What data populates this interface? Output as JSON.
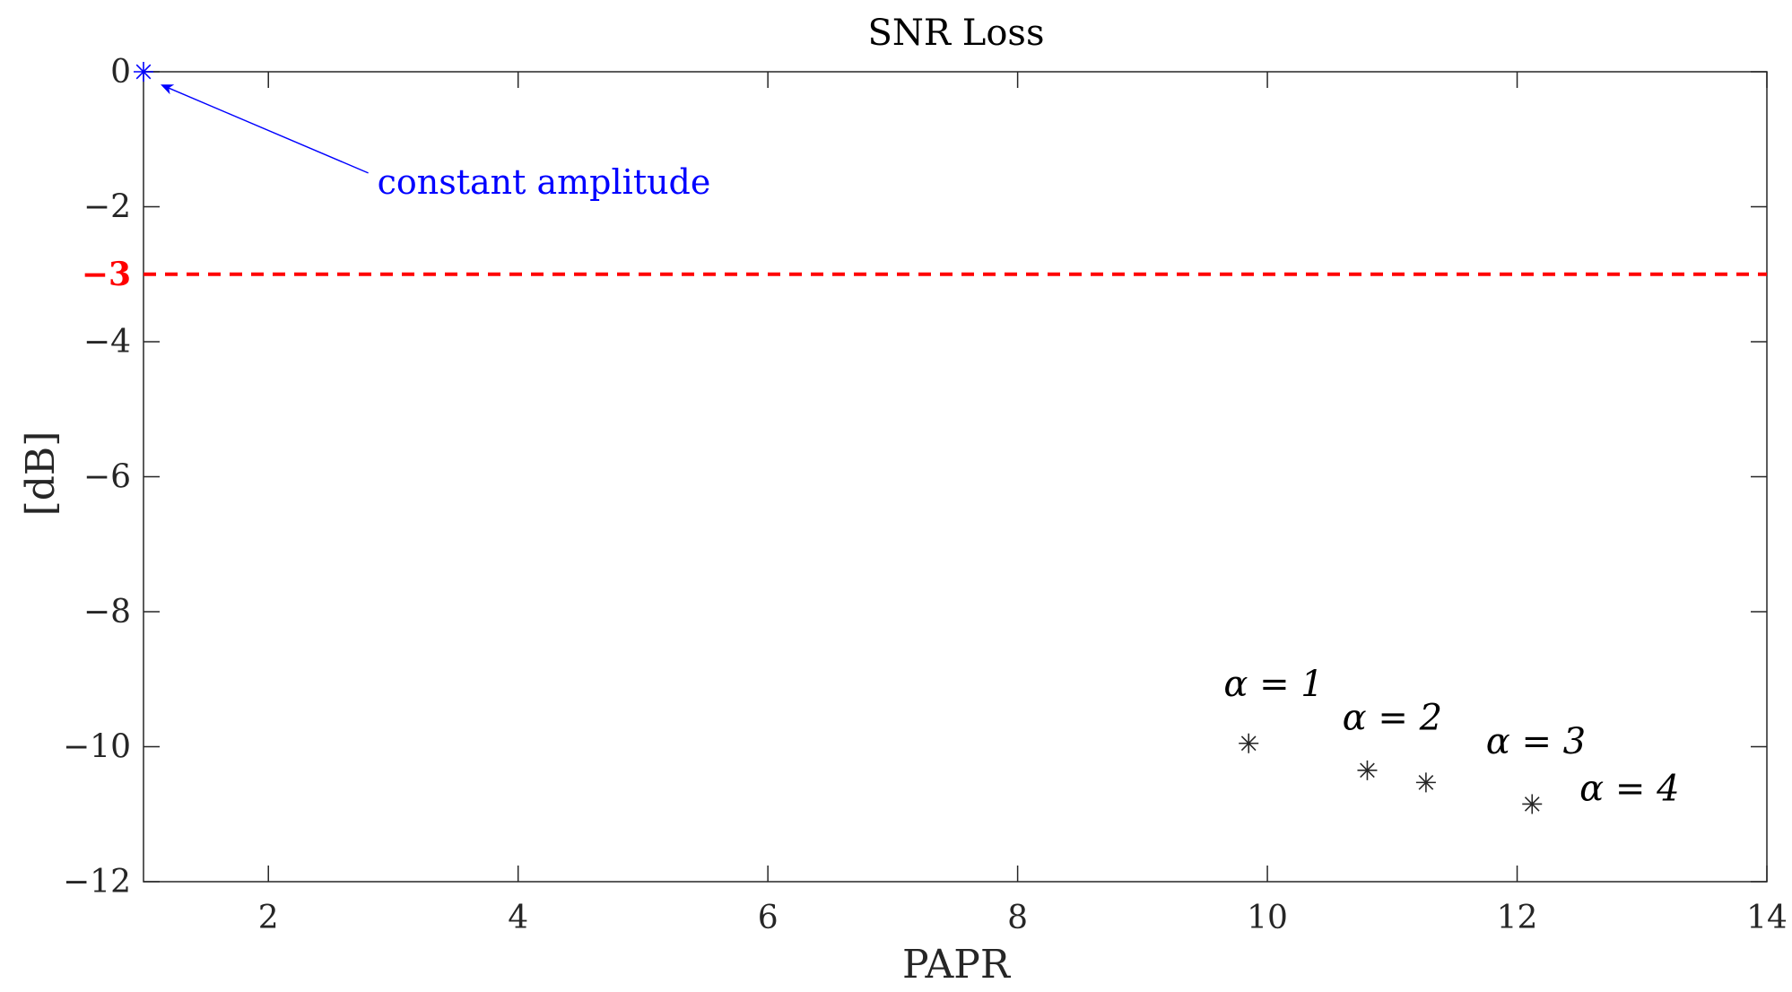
{
  "chart_data": {
    "type": "scatter",
    "title": "SNR Loss",
    "xlabel": "PAPR",
    "ylabel": "[dB]",
    "xlim": [
      1,
      14
    ],
    "ylim": [
      -12,
      0
    ],
    "x_ticks": [
      2,
      4,
      6,
      8,
      10,
      12,
      14
    ],
    "y_ticks": [
      0,
      -2,
      -4,
      -6,
      -8,
      -10,
      -12
    ],
    "x_tick_labels": [
      "2",
      "4",
      "6",
      "8",
      "10",
      "12",
      "14"
    ],
    "y_tick_labels": [
      "0",
      "−2",
      "−4",
      "−6",
      "−8",
      "−10",
      "−12"
    ],
    "grid": false,
    "series": [
      {
        "marker": "asterisk",
        "color": "#0000ff",
        "points": [
          {
            "x": 1.0,
            "y": 0.0
          }
        ]
      },
      {
        "marker": "asterisk",
        "color": "#262626",
        "points": [
          {
            "x": 9.85,
            "y": -9.95
          },
          {
            "x": 10.8,
            "y": -10.35
          },
          {
            "x": 11.27,
            "y": -10.53
          },
          {
            "x": 12.12,
            "y": -10.85
          }
        ]
      }
    ],
    "reference_line": {
      "y": -3,
      "label": "−3",
      "color": "#ff0000",
      "style": "dashed"
    },
    "annotations": [
      {
        "text": "constant amplitude",
        "color": "#0000ff",
        "text_at": {
          "x": 2.8,
          "y": -1.65
        },
        "arrow_from": {
          "x": 2.8,
          "y": -1.5
        },
        "arrow_to": {
          "x": 1.15,
          "y": -0.2
        }
      },
      {
        "text": "α = 1",
        "at": {
          "x": 9.65,
          "y": -9.25
        }
      },
      {
        "text": "α = 2",
        "at": {
          "x": 10.6,
          "y": -9.75
        }
      },
      {
        "text": "α = 3",
        "at": {
          "x": 11.75,
          "y": -10.1
        }
      },
      {
        "text": "α = 4",
        "at": {
          "x": 12.5,
          "y": -10.8
        }
      }
    ]
  }
}
